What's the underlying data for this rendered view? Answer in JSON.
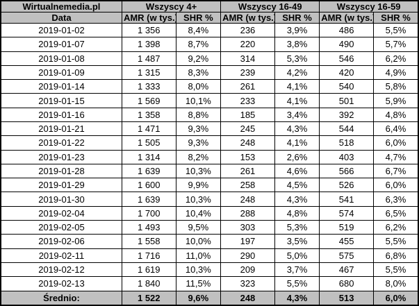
{
  "chart_data": {
    "type": "table",
    "brand": "Wirtualnemedia.pl",
    "date_column_header": "Data",
    "groups": [
      "Wszyscy 4+",
      "Wszyscy 16-49",
      "Wszyscy 16-59"
    ],
    "amr_header": "AMR (w tys.)",
    "shr_header": "SHR %",
    "rows": [
      {
        "date": "2019-01-02",
        "values": [
          "1 356",
          "8,4%",
          "236",
          "3,9%",
          "486",
          "5,5%"
        ]
      },
      {
        "date": "2019-01-07",
        "values": [
          "1 398",
          "8,7%",
          "220",
          "3,8%",
          "490",
          "5,7%"
        ]
      },
      {
        "date": "2019-01-08",
        "values": [
          "1 487",
          "9,2%",
          "314",
          "5,3%",
          "546",
          "6,2%"
        ]
      },
      {
        "date": "2019-01-09",
        "values": [
          "1 315",
          "8,3%",
          "239",
          "4,2%",
          "420",
          "4,9%"
        ]
      },
      {
        "date": "2019-01-14",
        "values": [
          "1 333",
          "8,0%",
          "261",
          "4,1%",
          "540",
          "5,8%"
        ]
      },
      {
        "date": "2019-01-15",
        "values": [
          "1 569",
          "10,1%",
          "233",
          "4,1%",
          "501",
          "5,9%"
        ]
      },
      {
        "date": "2019-01-16",
        "values": [
          "1 358",
          "8,8%",
          "185",
          "3,4%",
          "392",
          "4,8%"
        ]
      },
      {
        "date": "2019-01-21",
        "values": [
          "1 471",
          "9,3%",
          "245",
          "4,3%",
          "544",
          "6,4%"
        ]
      },
      {
        "date": "2019-01-22",
        "values": [
          "1 505",
          "9,3%",
          "248",
          "4,1%",
          "518",
          "6,0%"
        ]
      },
      {
        "date": "2019-01-23",
        "values": [
          "1 314",
          "8,2%",
          "153",
          "2,6%",
          "403",
          "4,7%"
        ]
      },
      {
        "date": "2019-01-28",
        "values": [
          "1 639",
          "10,3%",
          "261",
          "4,6%",
          "566",
          "6,7%"
        ]
      },
      {
        "date": "2019-01-29",
        "values": [
          "1 600",
          "9,9%",
          "258",
          "4,5%",
          "526",
          "6,0%"
        ]
      },
      {
        "date": "2019-01-30",
        "values": [
          "1 639",
          "10,3%",
          "248",
          "4,3%",
          "541",
          "6,3%"
        ]
      },
      {
        "date": "2019-02-04",
        "values": [
          "1 700",
          "10,4%",
          "288",
          "4,8%",
          "574",
          "6,5%"
        ]
      },
      {
        "date": "2019-02-05",
        "values": [
          "1 493",
          "9,5%",
          "303",
          "5,3%",
          "519",
          "6,2%"
        ]
      },
      {
        "date": "2019-02-06",
        "values": [
          "1 558",
          "10,0%",
          "197",
          "3,5%",
          "455",
          "5,5%"
        ]
      },
      {
        "date": "2019-02-11",
        "values": [
          "1 716",
          "11,0%",
          "290",
          "5,0%",
          "575",
          "6,8%"
        ]
      },
      {
        "date": "2019-02-12",
        "values": [
          "1 619",
          "10,3%",
          "209",
          "3,7%",
          "467",
          "5,5%"
        ]
      },
      {
        "date": "2019-02-13",
        "values": [
          "1 840",
          "11,5%",
          "323",
          "5,5%",
          "680",
          "8,0%"
        ]
      }
    ],
    "summary": {
      "label": "Średnio:",
      "values": [
        "1 522",
        "9,6%",
        "248",
        "4,3%",
        "513",
        "6,0%"
      ]
    }
  },
  "colors": {
    "header_bg": "#c0c0c0",
    "summary_bg": "#c0c0c0",
    "row_bg": "#ffffff",
    "border": "#000000",
    "text": "#000000"
  }
}
